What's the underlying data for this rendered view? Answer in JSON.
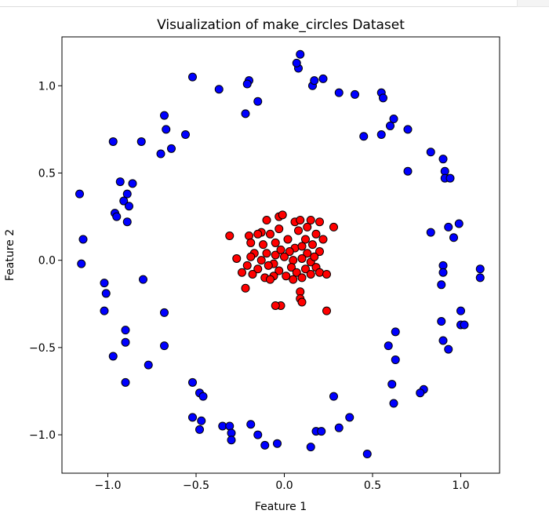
{
  "chart_data": {
    "type": "scatter",
    "title": "Visualization of make_circles Dataset",
    "xlabel": "Feature 1",
    "ylabel": "Feature 2",
    "xlim": [
      -1.26,
      1.22
    ],
    "ylim": [
      -1.22,
      1.28
    ],
    "xticks": [
      -1.0,
      -0.5,
      0.0,
      0.5,
      1.0
    ],
    "xtick_labels": [
      "−1.0",
      "−0.5",
      "0.0",
      "0.5",
      "1.0"
    ],
    "yticks": [
      -1.0,
      -0.5,
      0.0,
      0.5,
      1.0
    ],
    "ytick_labels": [
      "−1.0",
      "−0.5",
      "0.0",
      "0.5",
      "1.0"
    ],
    "grid": false,
    "marker_edge_color": "#000000",
    "series": [
      {
        "color": "#0000ff",
        "points": [
          [
            0.09,
            1.18
          ],
          [
            0.08,
            1.1
          ],
          [
            0.07,
            1.13
          ],
          [
            0.16,
            1.0
          ],
          [
            0.17,
            1.03
          ],
          [
            0.22,
            1.04
          ],
          [
            0.31,
            0.96
          ],
          [
            0.4,
            0.95
          ],
          [
            0.55,
            0.96
          ],
          [
            0.56,
            0.93
          ],
          [
            -0.2,
            1.03
          ],
          [
            -0.21,
            1.01
          ],
          [
            -0.15,
            0.91
          ],
          [
            -0.37,
            0.98
          ],
          [
            -0.52,
            1.05
          ],
          [
            -0.22,
            0.84
          ],
          [
            0.62,
            0.81
          ],
          [
            0.6,
            0.77
          ],
          [
            0.7,
            0.75
          ],
          [
            0.55,
            0.72
          ],
          [
            0.45,
            0.71
          ],
          [
            -0.68,
            0.83
          ],
          [
            -0.67,
            0.75
          ],
          [
            -0.64,
            0.64
          ],
          [
            -0.56,
            0.72
          ],
          [
            -0.7,
            0.61
          ],
          [
            -0.81,
            0.68
          ],
          [
            -0.97,
            0.68
          ],
          [
            0.83,
            0.62
          ],
          [
            0.9,
            0.58
          ],
          [
            0.7,
            0.51
          ],
          [
            0.91,
            0.51
          ],
          [
            0.91,
            0.47
          ],
          [
            0.94,
            0.47
          ],
          [
            -0.93,
            0.45
          ],
          [
            -0.86,
            0.44
          ],
          [
            -0.89,
            0.38
          ],
          [
            -0.91,
            0.34
          ],
          [
            -0.88,
            0.31
          ],
          [
            -0.96,
            0.27
          ],
          [
            -0.95,
            0.25
          ],
          [
            -0.89,
            0.22
          ],
          [
            -1.16,
            0.38
          ],
          [
            0.99,
            0.21
          ],
          [
            0.93,
            0.19
          ],
          [
            0.83,
            0.16
          ],
          [
            0.96,
            0.13
          ],
          [
            -1.14,
            0.12
          ],
          [
            -1.15,
            -0.02
          ],
          [
            0.9,
            -0.03
          ],
          [
            0.9,
            -0.07
          ],
          [
            1.11,
            -0.05
          ],
          [
            1.11,
            -0.1
          ],
          [
            -0.8,
            -0.11
          ],
          [
            -1.02,
            -0.13
          ],
          [
            -1.01,
            -0.19
          ],
          [
            0.89,
            -0.14
          ],
          [
            1.0,
            -0.29
          ],
          [
            -1.02,
            -0.29
          ],
          [
            1.0,
            -0.37
          ],
          [
            1.02,
            -0.37
          ],
          [
            0.89,
            -0.35
          ],
          [
            -0.68,
            -0.3
          ],
          [
            -0.9,
            -0.4
          ],
          [
            -0.9,
            -0.47
          ],
          [
            -0.97,
            -0.55
          ],
          [
            -0.68,
            -0.49
          ],
          [
            0.63,
            -0.41
          ],
          [
            0.59,
            -0.49
          ],
          [
            0.9,
            -0.46
          ],
          [
            0.93,
            -0.51
          ],
          [
            0.63,
            -0.57
          ],
          [
            -0.77,
            -0.6
          ],
          [
            -0.9,
            -0.7
          ],
          [
            -0.52,
            -0.7
          ],
          [
            -0.48,
            -0.76
          ],
          [
            -0.46,
            -0.78
          ],
          [
            0.61,
            -0.71
          ],
          [
            0.62,
            -0.82
          ],
          [
            0.79,
            -0.74
          ],
          [
            0.77,
            -0.76
          ],
          [
            0.28,
            -0.78
          ],
          [
            -0.52,
            -0.9
          ],
          [
            -0.47,
            -0.92
          ],
          [
            -0.48,
            -0.97
          ],
          [
            -0.35,
            -0.95
          ],
          [
            -0.31,
            -0.95
          ],
          [
            -0.3,
            -0.99
          ],
          [
            -0.3,
            -1.03
          ],
          [
            -0.19,
            -0.94
          ],
          [
            -0.15,
            -1.0
          ],
          [
            -0.11,
            -1.06
          ],
          [
            -0.04,
            -1.05
          ],
          [
            0.18,
            -0.98
          ],
          [
            0.21,
            -0.98
          ],
          [
            0.31,
            -0.96
          ],
          [
            0.37,
            -0.9
          ],
          [
            0.15,
            -1.07
          ],
          [
            0.47,
            -1.11
          ]
        ]
      },
      {
        "color": "#ff0000",
        "points": [
          [
            -0.03,
            0.25
          ],
          [
            -0.01,
            0.26
          ],
          [
            -0.1,
            0.23
          ],
          [
            0.06,
            0.22
          ],
          [
            0.09,
            0.23
          ],
          [
            0.13,
            0.19
          ],
          [
            0.15,
            0.23
          ],
          [
            0.2,
            0.22
          ],
          [
            0.28,
            0.19
          ],
          [
            -0.13,
            0.16
          ],
          [
            -0.2,
            0.14
          ],
          [
            -0.15,
            0.15
          ],
          [
            -0.08,
            0.15
          ],
          [
            -0.03,
            0.18
          ],
          [
            0.02,
            0.12
          ],
          [
            0.08,
            0.17
          ],
          [
            0.12,
            0.12
          ],
          [
            0.18,
            0.15
          ],
          [
            0.22,
            0.12
          ],
          [
            -0.31,
            0.14
          ],
          [
            -0.19,
            0.1
          ],
          [
            -0.12,
            0.09
          ],
          [
            -0.05,
            0.1
          ],
          [
            0.06,
            0.07
          ],
          [
            0.1,
            0.08
          ],
          [
            0.16,
            0.09
          ],
          [
            -0.17,
            0.04
          ],
          [
            -0.1,
            0.04
          ],
          [
            -0.05,
            0.03
          ],
          [
            -0.02,
            0.06
          ],
          [
            0.03,
            0.05
          ],
          [
            0.13,
            0.04
          ],
          [
            0.2,
            0.05
          ],
          [
            -0.27,
            0.01
          ],
          [
            -0.19,
            0.02
          ],
          [
            -0.13,
            0.0
          ],
          [
            -0.06,
            -0.02
          ],
          [
            0.0,
            0.02
          ],
          [
            0.05,
            0.0
          ],
          [
            0.1,
            0.01
          ],
          [
            0.15,
            -0.01
          ],
          [
            0.17,
            0.02
          ],
          [
            -0.21,
            -0.03
          ],
          [
            -0.15,
            -0.05
          ],
          [
            -0.09,
            -0.03
          ],
          [
            -0.03,
            -0.06
          ],
          [
            0.04,
            -0.04
          ],
          [
            0.07,
            -0.07
          ],
          [
            0.12,
            -0.05
          ],
          [
            0.18,
            -0.04
          ],
          [
            -0.24,
            -0.07
          ],
          [
            -0.18,
            -0.08
          ],
          [
            -0.11,
            -0.1
          ],
          [
            -0.06,
            -0.09
          ],
          [
            0.01,
            -0.09
          ],
          [
            0.05,
            -0.11
          ],
          [
            0.1,
            -0.1
          ],
          [
            0.15,
            -0.08
          ],
          [
            0.2,
            -0.07
          ],
          [
            0.24,
            -0.08
          ],
          [
            -0.22,
            -0.16
          ],
          [
            -0.08,
            -0.11
          ],
          [
            0.09,
            -0.18
          ],
          [
            0.09,
            -0.22
          ],
          [
            0.1,
            -0.24
          ],
          [
            -0.02,
            -0.26
          ],
          [
            -0.05,
            -0.26
          ],
          [
            0.24,
            -0.29
          ]
        ]
      }
    ]
  }
}
